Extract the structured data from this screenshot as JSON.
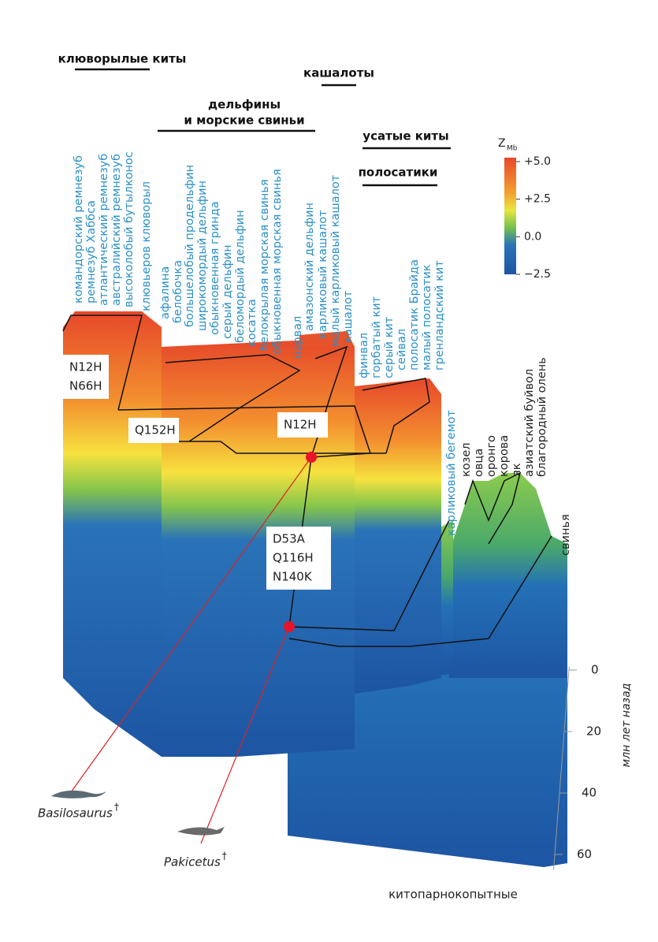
{
  "groups": [
    {
      "lines": [
        "клюворылые киты"
      ]
    },
    {
      "lines": [
        "кашалоты"
      ]
    },
    {
      "lines": [
        "дельфины",
        "и морские свиньи"
      ]
    },
    {
      "lines": [
        "усатые киты"
      ]
    },
    {
      "lines": [
        "полосатики"
      ]
    }
  ],
  "cetacean_species": [
    "командорский ремнезуб",
    "ремнезуб Хаббса",
    "атлантический ремнезуб",
    "австралийский ремнезуб",
    "высоколобый бутылконос",
    "клювьеров клюворыл",
    "афалина",
    "белобочка",
    "большелобый продельфин",
    "широкомордый дельфин",
    "обыкновенная гринда",
    "серый дельфин",
    "беломордый дельфин",
    "косатка",
    "белокрылая морская свинья",
    "обыкновенная морская свинья",
    "нарвал",
    "амазонский дельфин",
    "карликовый кашалот",
    "малый карликовый кашалот",
    "кашалот",
    "финвал",
    "горбатый кит",
    "серый кит",
    "сейвал",
    "полосатик Брайда",
    "малый полосатик",
    "гренландский кит",
    "карликовый бегемот"
  ],
  "other_species": [
    "козел",
    "овца",
    "оронго",
    "корова",
    "як",
    "азиатский буйвол",
    "благородный олень",
    "свинья"
  ],
  "mutations": [
    [
      "N12H",
      "N66H"
    ],
    [
      "Q152H"
    ],
    [
      "N12H"
    ],
    [
      "D53A",
      "Q116H",
      "N140K"
    ]
  ],
  "fossils": [
    {
      "name": "Basilosaurus",
      "mark": "†"
    },
    {
      "name": "Pakicetus",
      "mark": "†"
    }
  ],
  "colorbar": {
    "symbol": "Z",
    "subscript": "Mb",
    "limits": [
      -2.5,
      5
    ],
    "ticks": [
      {
        "value": 5,
        "label": "+5.0"
      },
      {
        "value": 2.5,
        "label": "+2.5"
      },
      {
        "value": 0,
        "label": "0.0"
      },
      {
        "value": -2.5,
        "label": "−2.5"
      }
    ]
  },
  "time_axis": {
    "label": "млн лет назад",
    "ticks": [
      0,
      20,
      40,
      60
    ]
  },
  "footer": "китопарнокопытные"
}
